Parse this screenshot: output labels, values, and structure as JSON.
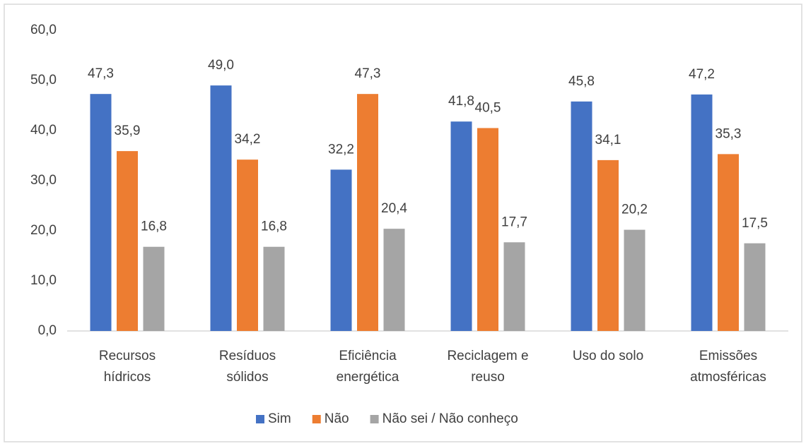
{
  "chart_data": {
    "type": "bar",
    "categories": [
      "Recursos hídricos",
      "Resíduos sólidos",
      "Eficiência energética",
      "Reciclagem e reuso",
      "Uso do solo",
      "Emissões atmosféricas"
    ],
    "series": [
      {
        "name": "Sim",
        "color": "#4472c4",
        "values": [
          47.3,
          49.0,
          32.2,
          41.8,
          45.8,
          47.2
        ],
        "value_labels": [
          "47,3",
          "49,0",
          "32,2",
          "41,8",
          "45,8",
          "47,2"
        ]
      },
      {
        "name": "Não",
        "color": "#ed7d31",
        "values": [
          35.9,
          34.2,
          47.3,
          40.5,
          34.1,
          35.3
        ],
        "value_labels": [
          "35,9",
          "34,2",
          "47,3",
          "40,5",
          "34,1",
          "35,3"
        ]
      },
      {
        "name": "Não sei / Não conheço",
        "color": "#a5a5a5",
        "values": [
          16.8,
          16.8,
          20.4,
          17.7,
          20.2,
          17.5
        ],
        "value_labels": [
          "16,8",
          "16,8",
          "20,4",
          "17,7",
          "20,2",
          "17,5"
        ]
      }
    ],
    "ylim": [
      0,
      60
    ],
    "yticks": [
      {
        "value": 0,
        "label": "0,0"
      },
      {
        "value": 10,
        "label": "10,0"
      },
      {
        "value": 20,
        "label": "20,0"
      },
      {
        "value": 30,
        "label": "30,0"
      },
      {
        "value": 40,
        "label": "40,0"
      },
      {
        "value": 50,
        "label": "50,0"
      },
      {
        "value": 60,
        "label": "60,0"
      }
    ],
    "grid": false,
    "legend": "bottom"
  }
}
